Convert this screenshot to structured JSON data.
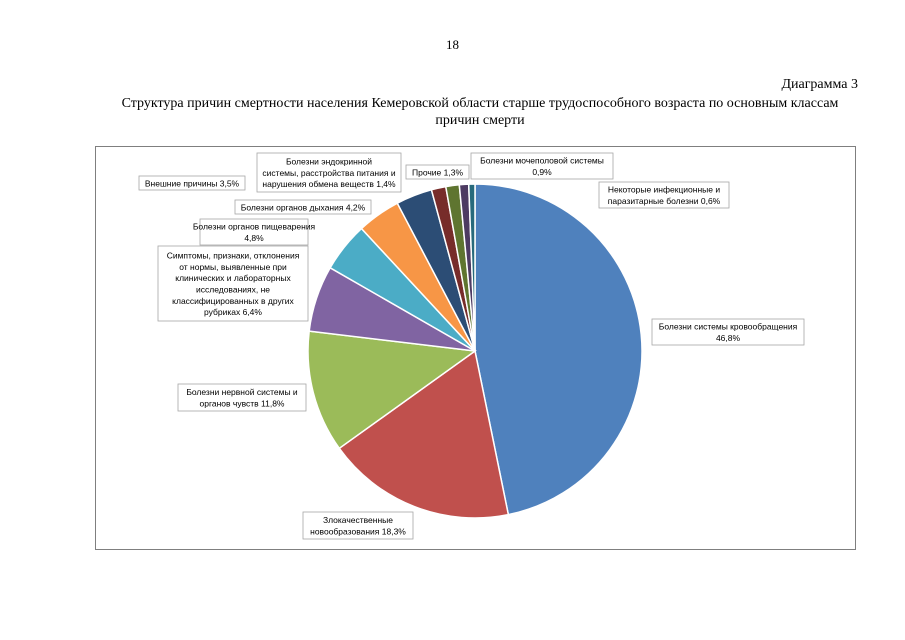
{
  "page_number": "18",
  "diagram_label": "Диаграмма 3",
  "chart_data": {
    "type": "pie",
    "title": "Структура причин смертности населения Кемеровской области старше трудоспособного возраста по основным классам причин смерти",
    "slices": [
      {
        "name": "Болезни системы кровообращения",
        "value": 46.8,
        "label_lines": [
          "Болезни системы кровообращения",
          "46,8%"
        ],
        "color": "#4F81BD"
      },
      {
        "name": "Злокачественные новообразования",
        "value": 18.3,
        "label_lines": [
          "Злокачественные",
          "новообразования 18,3%"
        ],
        "color": "#C0504D"
      },
      {
        "name": "Болезни нервной системы и органов чувств",
        "value": 11.8,
        "label_lines": [
          "Болезни нервной системы и",
          "органов чувств 11,8%"
        ],
        "color": "#9BBB59"
      },
      {
        "name": "Симптомы, признаки, отклонения от нормы, выявленные при клинических и лабораторных исследованиях, не классифицированных в других рубриках",
        "value": 6.4,
        "label_lines": [
          "Симптомы, признаки, отклонения",
          "от нормы, выявленные при",
          "клинических и лабораторных",
          "исследованиях, не",
          "классифицированных в других",
          "рубриках 6,4%"
        ],
        "color": "#8064A2"
      },
      {
        "name": "Болезни органов пищеварения",
        "value": 4.8,
        "label_lines": [
          "Болезни органов пищеварения",
          "4,8%"
        ],
        "color": "#4BACC6"
      },
      {
        "name": "Болезни органов дыхания",
        "value": 4.2,
        "label_lines": [
          "Болезни органов дыхания 4,2%"
        ],
        "color": "#F79646"
      },
      {
        "name": "Внешние причины",
        "value": 3.5,
        "label_lines": [
          "Внешние причины 3,5%"
        ],
        "color": "#2C4D75"
      },
      {
        "name": "Болезни эндокринной системы, расстройства питания и нарушения обмена веществ",
        "value": 1.4,
        "label_lines": [
          "Болезни эндокринной",
          "системы, расстройства питания и",
          "нарушения обмена веществ 1,4%"
        ],
        "color": "#772C2A"
      },
      {
        "name": "Прочие",
        "value": 1.3,
        "label_lines": [
          "Прочие 1,3%"
        ],
        "color": "#5F7530"
      },
      {
        "name": "Болезни мочеполовой системы",
        "value": 0.9,
        "label_lines": [
          "Болезни мочеполовой системы",
          "0,9%"
        ],
        "color": "#4D3B62"
      },
      {
        "name": "Некоторые инфекционные и паразитарные болезни",
        "value": 0.6,
        "label_lines": [
          "Некоторые инфекционные и",
          "паразитарные болезни 0,6%"
        ],
        "color": "#276A7C"
      }
    ]
  }
}
